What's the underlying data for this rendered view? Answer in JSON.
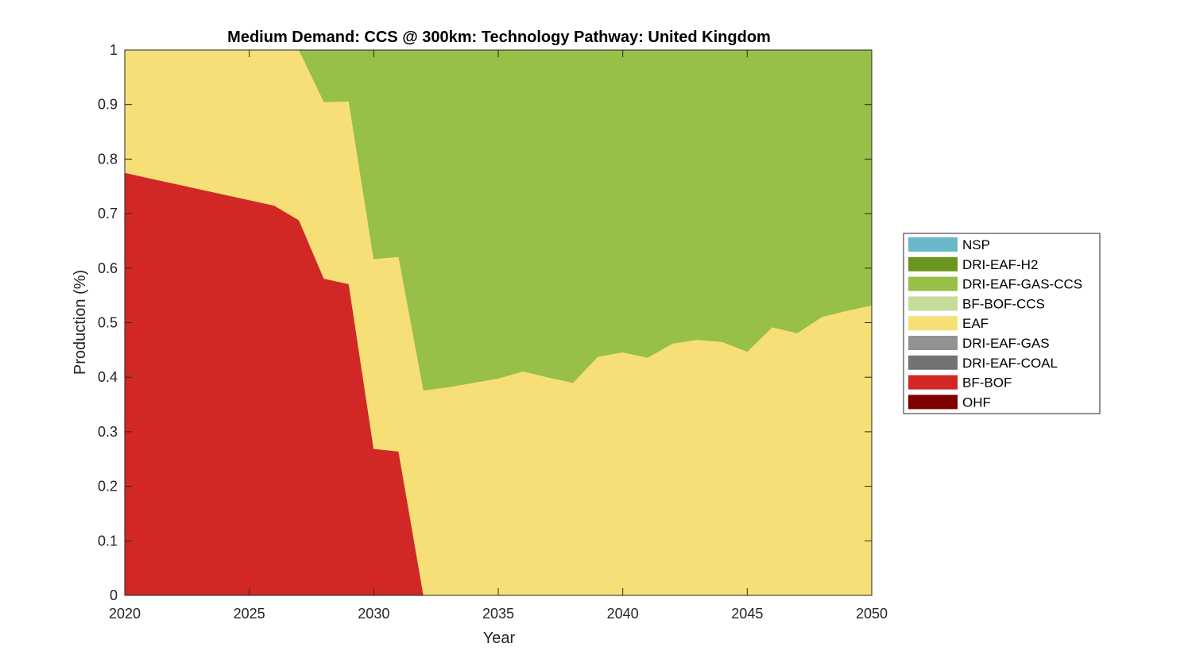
{
  "chart_data": {
    "type": "area",
    "stacked": true,
    "title": "Medium Demand: CCS @ 300km: Technology Pathway: United Kingdom",
    "xlabel": "Year",
    "ylabel": "Production (%)",
    "xlim": [
      2020,
      2050
    ],
    "ylim": [
      0,
      1
    ],
    "xticks": [
      2020,
      2025,
      2030,
      2035,
      2040,
      2045,
      2050
    ],
    "xtick_labels": [
      "2020",
      "2025",
      "2030",
      "2035",
      "2040",
      "2045",
      "2050"
    ],
    "yticks": [
      0,
      0.1,
      0.2,
      0.3,
      0.4,
      0.5,
      0.6,
      0.7,
      0.8,
      0.9,
      1
    ],
    "ytick_labels": [
      "0",
      "0.1",
      "0.2",
      "0.3",
      "0.4",
      "0.5",
      "0.6",
      "0.7",
      "0.8",
      "0.9",
      "1"
    ],
    "legend_position": "outside-right",
    "x": [
      2020,
      2021,
      2022,
      2023,
      2024,
      2025,
      2026,
      2027,
      2028,
      2029,
      2030,
      2031,
      2032,
      2033,
      2034,
      2035,
      2036,
      2037,
      2038,
      2039,
      2040,
      2041,
      2042,
      2043,
      2044,
      2045,
      2046,
      2047,
      2048,
      2049,
      2050
    ],
    "series": [
      {
        "name": "NSP",
        "color": "#6ab7c9",
        "values": [
          0,
          0,
          0,
          0,
          0,
          0,
          0,
          0,
          0,
          0,
          0,
          0,
          0,
          0,
          0,
          0,
          0,
          0,
          0,
          0,
          0,
          0,
          0,
          0,
          0,
          0,
          0,
          0,
          0,
          0,
          0
        ]
      },
      {
        "name": "DRI-EAF-H2",
        "color": "#6a961f",
        "values": [
          0,
          0,
          0,
          0,
          0,
          0,
          0,
          0,
          0,
          0,
          0,
          0,
          0,
          0,
          0,
          0,
          0,
          0,
          0,
          0,
          0,
          0,
          0,
          0,
          0,
          0,
          0,
          0,
          0,
          0,
          0
        ]
      },
      {
        "name": "DRI-EAF-GAS-CCS",
        "color": "#98bf47",
        "values": [
          0,
          0,
          0,
          0,
          0,
          0,
          0,
          0,
          0.095,
          0.094,
          0.383,
          0.379,
          0.624,
          0.618,
          0.61,
          0.602,
          0.589,
          0.6,
          0.61,
          0.562,
          0.554,
          0.564,
          0.538,
          0.531,
          0.535,
          0.553,
          0.508,
          0.519,
          0.489,
          0.478,
          0.468
        ]
      },
      {
        "name": "BF-BOF-CCS",
        "color": "#c8dc9a",
        "values": [
          0,
          0,
          0,
          0,
          0,
          0,
          0,
          0,
          0,
          0,
          0,
          0,
          0,
          0,
          0,
          0,
          0,
          0,
          0,
          0,
          0,
          0,
          0,
          0,
          0,
          0,
          0,
          0,
          0,
          0,
          0
        ]
      },
      {
        "name": "EAF",
        "color": "#f7df78",
        "values": [
          0.225,
          0.235,
          0.245,
          0.255,
          0.265,
          0.275,
          0.285,
          0.312,
          0.324,
          0.335,
          0.348,
          0.357,
          0.376,
          0.382,
          0.39,
          0.398,
          0.411,
          0.4,
          0.39,
          0.438,
          0.446,
          0.436,
          0.462,
          0.469,
          0.465,
          0.447,
          0.492,
          0.481,
          0.511,
          0.522,
          0.532
        ]
      },
      {
        "name": "DRI-EAF-GAS",
        "color": "#929292",
        "values": [
          0,
          0,
          0,
          0,
          0,
          0,
          0,
          0,
          0,
          0,
          0,
          0,
          0,
          0,
          0,
          0,
          0,
          0,
          0,
          0,
          0,
          0,
          0,
          0,
          0,
          0,
          0,
          0,
          0,
          0,
          0
        ]
      },
      {
        "name": "DRI-EAF-COAL",
        "color": "#737373",
        "values": [
          0,
          0,
          0,
          0,
          0,
          0,
          0,
          0,
          0,
          0,
          0,
          0,
          0,
          0,
          0,
          0,
          0,
          0,
          0,
          0,
          0,
          0,
          0,
          0,
          0,
          0,
          0,
          0,
          0,
          0,
          0
        ]
      },
      {
        "name": "BF-BOF",
        "color": "#d12825",
        "values": [
          0.775,
          0.765,
          0.755,
          0.745,
          0.735,
          0.725,
          0.715,
          0.688,
          0.581,
          0.571,
          0.269,
          0.264,
          0,
          0,
          0,
          0,
          0,
          0,
          0,
          0,
          0,
          0,
          0,
          0,
          0,
          0,
          0,
          0,
          0,
          0,
          0
        ]
      },
      {
        "name": "OHF",
        "color": "#800000",
        "values": [
          0,
          0,
          0,
          0,
          0,
          0,
          0,
          0,
          0,
          0,
          0,
          0,
          0,
          0,
          0,
          0,
          0,
          0,
          0,
          0,
          0,
          0,
          0,
          0,
          0,
          0,
          0,
          0,
          0,
          0,
          0
        ]
      }
    ],
    "stack_order": [
      "OHF",
      "BF-BOF",
      "DRI-EAF-COAL",
      "DRI-EAF-GAS",
      "EAF",
      "BF-BOF-CCS",
      "DRI-EAF-GAS-CCS",
      "DRI-EAF-H2",
      "NSP"
    ]
  }
}
